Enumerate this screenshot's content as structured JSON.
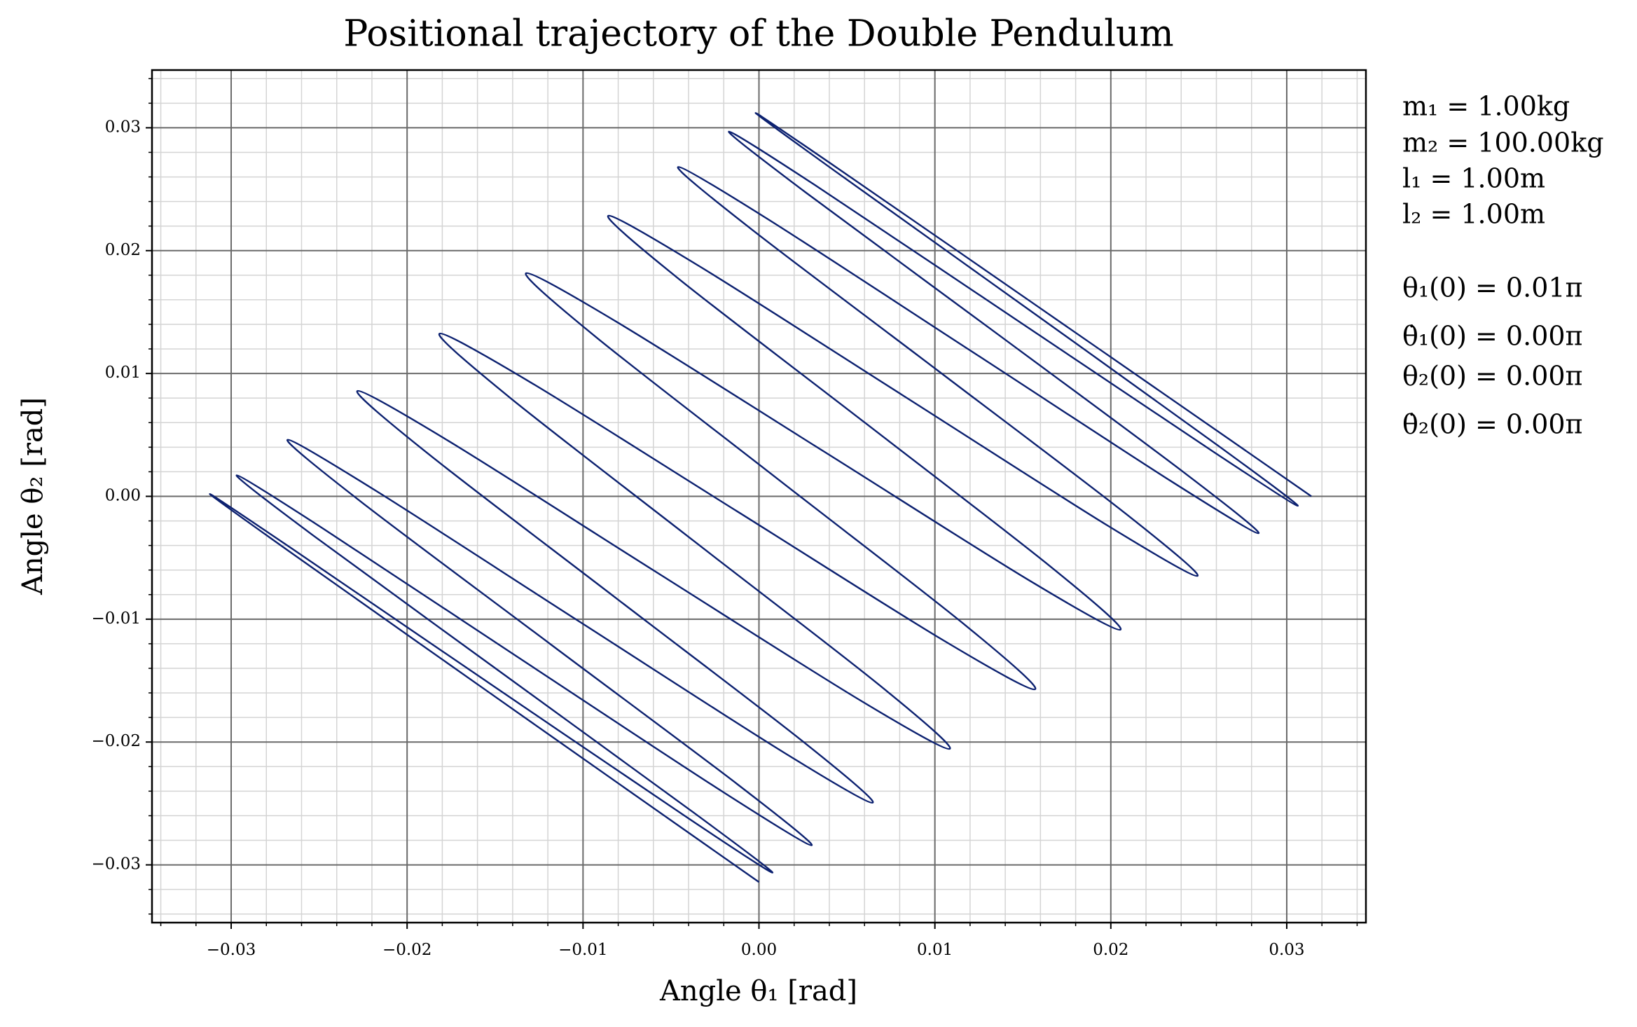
{
  "chart_data": {
    "type": "line",
    "title": "Positional trajectory of the Double Pendulum",
    "xlabel": "Angle θ₁ [rad]",
    "ylabel": "Angle θ₂ [rad]",
    "color": "#0c2170",
    "grid": true,
    "annotations": [
      "m₁ = 1.00kg",
      "m₂ = 100.00kg",
      "l₁ = 1.00m",
      "l₂ = 1.00m",
      "θ₁(0) = 0.01π",
      "θ̇₁(0) = 0.00π",
      "θ₂(0) = 0.00π",
      "θ̇₂(0) = 0.00π"
    ],
    "xlim": [
      -0.0345,
      0.0345
    ],
    "ylim": [
      -0.0347,
      0.0347
    ],
    "xticks": [
      {
        "value": -0.03,
        "label": "−0.03"
      },
      {
        "value": -0.02,
        "label": "−0.02"
      },
      {
        "value": -0.01,
        "label": "−0.01"
      },
      {
        "value": 0,
        "label": "0.00"
      },
      {
        "value": 0.01,
        "label": "0.01"
      },
      {
        "value": 0.02,
        "label": "0.02"
      },
      {
        "value": 0.03,
        "label": "0.03"
      }
    ],
    "yticks": [
      {
        "value": -0.03,
        "label": "−0.03"
      },
      {
        "value": -0.02,
        "label": "−0.02"
      },
      {
        "value": -0.01,
        "label": "−0.01"
      },
      {
        "value": 0,
        "label": "0.00"
      },
      {
        "value": 0.01,
        "label": "0.01"
      },
      {
        "value": 0.02,
        "label": "0.02"
      },
      {
        "value": 0.03,
        "label": "0.03"
      }
    ],
    "minor_ticks": [
      -0.034,
      -0.032,
      -0.028,
      -0.026,
      -0.024,
      -0.022,
      -0.018,
      -0.016,
      -0.014,
      -0.012,
      -0.008,
      -0.006,
      -0.004,
      -0.002,
      0.002,
      0.004,
      0.006,
      0.008,
      0.012,
      0.014,
      0.016,
      0.018,
      0.022,
      0.024,
      0.026,
      0.028,
      0.032,
      0.034
    ],
    "x": [
      0.0314,
      0.02679,
      0.01565,
      0.00449,
      -0.00019,
      0.0043,
      0.01527,
      0.02621,
      0.03063,
      0.02583,
      0.0145,
      0.00316,
      -0.00171,
      0.0026,
      0.01339,
      0.02415,
      0.0284,
      0.02343,
      0.01194,
      0.00043,
      -0.0046,
      -0.00044,
      0.0102,
      0.02082,
      0.02493,
      0.01982,
      0.0082,
      -0.00343,
      -0.00857,
      -0.00453,
      0.00601,
      0.01653,
      0.02055,
      0.01536,
      0.00367,
      -0.00804,
      -0.01324,
      -0.00925,
      0.00123,
      0.01172,
      0.0157,
      0.01048,
      -0.00123,
      -0.01295,
      -0.01816,
      -0.01416,
      -0.00367,
      0.00684,
      0.01085,
      0.00567,
      -0.00601,
      -0.01767,
      -0.02283,
      -0.01877,
      -0.0082,
      0.00238,
      0.00647,
      0.00138,
      -0.0102,
      -0.02176,
      -0.0268,
      -0.02263,
      -0.01194,
      -0.00123,
      0.003,
      -0.00195,
      -0.01339,
      -0.0248,
      -0.02969,
      -0.02536,
      -0.0145,
      -0.00363,
      0.00077,
      -0.00401,
      -0.01527,
      -0.0265,
      -0.03121,
      -0.02669,
      -0.01565,
      -0.00459,
      0
    ],
    "values": [
      0,
      0.00459,
      0.01565,
      0.02669,
      0.03121,
      0.0265,
      0.01527,
      0.00401,
      -0.00077,
      0.00363,
      0.0145,
      0.02536,
      0.02969,
      0.0248,
      0.01339,
      0.00195,
      -0.003,
      0.00123,
      0.01194,
      0.02263,
      0.0268,
      0.02176,
      0.0102,
      -0.00138,
      -0.00647,
      -0.00238,
      0.0082,
      0.01877,
      0.02283,
      0.01767,
      0.00601,
      -0.00567,
      -0.01085,
      -0.00684,
      0.00367,
      0.01416,
      0.01816,
      0.01295,
      0.00123,
      -0.01048,
      -0.0157,
      -0.01172,
      -0.00123,
      0.00925,
      0.01324,
      0.00804,
      -0.00367,
      -0.01536,
      -0.02055,
      -0.01653,
      -0.00601,
      0.00453,
      0.00857,
      0.00343,
      -0.0082,
      -0.01982,
      -0.02493,
      -0.02082,
      -0.0102,
      0.00044,
      0.0046,
      -0.00043,
      -0.01194,
      -0.02343,
      -0.0284,
      -0.02415,
      -0.01339,
      -0.0026,
      0.00171,
      -0.00316,
      -0.0145,
      -0.02583,
      -0.03063,
      -0.02621,
      -0.01527,
      -0.0043,
      0.00019,
      -0.00449,
      -0.01565,
      -0.02679,
      -0.0314
    ]
  }
}
